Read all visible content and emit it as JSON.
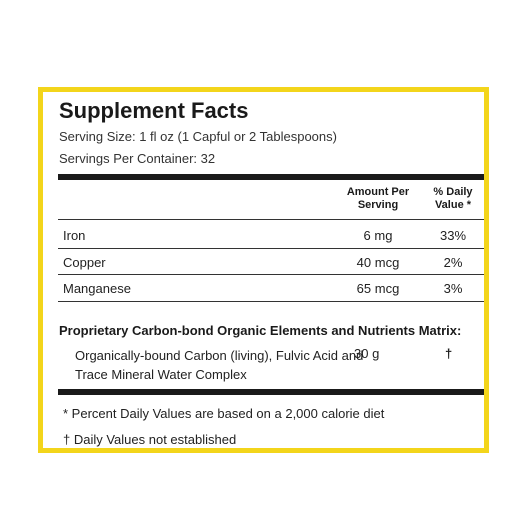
{
  "title": "Supplement Facts",
  "serving_size": "Serving Size: 1 fl oz (1 Capful or 2 Tablespoons)",
  "servings_per_container": "Servings Per Container: 32",
  "header": {
    "amount_line1": "Amount Per",
    "amount_line2": "Serving",
    "dv_line1": "% Daily",
    "dv_line2": "Value *"
  },
  "rows": [
    {
      "label": "Iron",
      "amount": "6 mg",
      "dv": "33%"
    },
    {
      "label": "Copper",
      "amount": "40 mcg",
      "dv": "2%"
    },
    {
      "label": "Manganese",
      "amount": "65 mcg",
      "dv": "3%"
    }
  ],
  "matrix": {
    "title": "Proprietary Carbon-bond Organic Elements and Nutrients Matrix:",
    "description": "Organically-bound Carbon (living), Fulvic Acid and Trace Mineral Water Complex",
    "amount": "30 g",
    "dv": "†"
  },
  "footnotes": [
    "* Percent Daily Values are based on a 2,000 calorie diet",
    "† Daily Values not established"
  ],
  "colors": {
    "border": "#f3d51b",
    "text": "#222222"
  }
}
